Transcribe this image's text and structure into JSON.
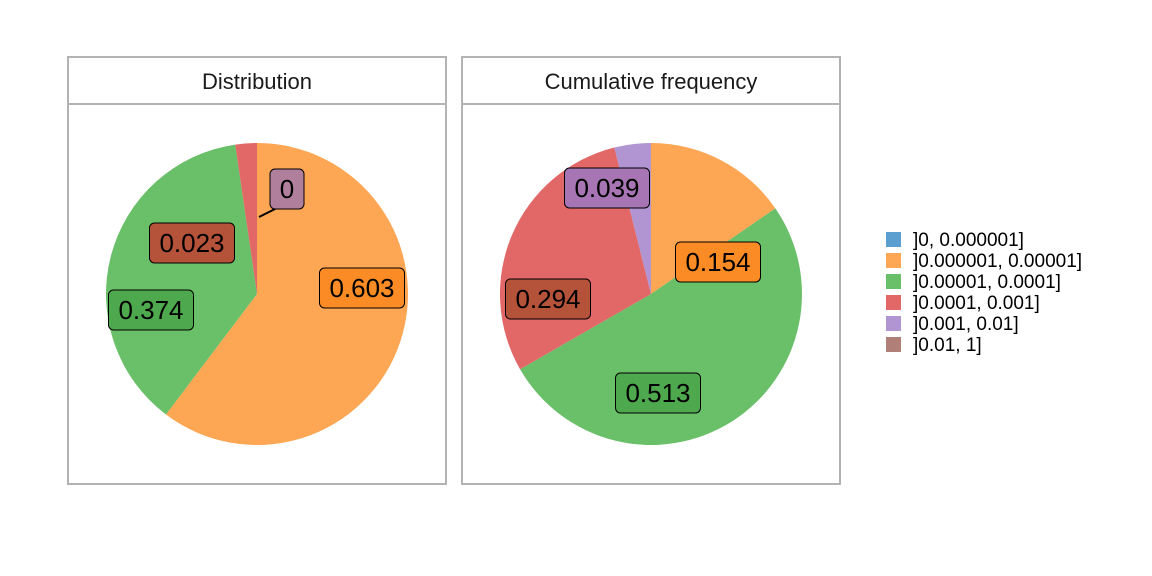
{
  "chart_data": [
    {
      "type": "pie",
      "title": "Distribution",
      "categories": [
        "]0, 0.000001]",
        "]0.000001, 0.00001]",
        "]0.00001, 0.0001]",
        "]0.0001, 0.001]",
        "]0.001, 0.01]",
        "]0.01, 1]"
      ],
      "values": [
        0,
        0.603,
        0.374,
        0.023,
        0,
        0
      ],
      "data_labels": [
        {
          "category": "]0.000001, 0.00001]",
          "text": "0.603"
        },
        {
          "category": "]0.00001, 0.0001]",
          "text": "0.374"
        },
        {
          "category": "]0.0001, 0.001]",
          "text": "0.023"
        },
        {
          "category": "]0.01, 1]",
          "text": "0"
        }
      ]
    },
    {
      "type": "pie",
      "title": "Cumulative frequency",
      "categories": [
        "]0, 0.000001]",
        "]0.000001, 0.00001]",
        "]0.00001, 0.0001]",
        "]0.0001, 0.001]",
        "]0.001, 0.01]",
        "]0.01, 1]"
      ],
      "values": [
        0,
        0.154,
        0.513,
        0.294,
        0.039,
        0
      ],
      "data_labels": [
        {
          "category": "]0.000001, 0.00001]",
          "text": "0.154"
        },
        {
          "category": "]0.00001, 0.0001]",
          "text": "0.513"
        },
        {
          "category": "]0.0001, 0.001]",
          "text": "0.294"
        },
        {
          "category": "]0.001, 0.01]",
          "text": "0.039"
        }
      ]
    }
  ],
  "legend": {
    "placement": "right",
    "items": [
      {
        "label": "]0, 0.000001]",
        "color": "#5b9fd1"
      },
      {
        "label": "]0.000001, 0.00001]",
        "color": "#fda654"
      },
      {
        "label": "]0.00001, 0.0001]",
        "color": "#6abf69"
      },
      {
        "label": "]0.0001, 0.001]",
        "color": "#e26767"
      },
      {
        "label": "]0.001, 0.01]",
        "color": "#b095d2"
      },
      {
        "label": "]0.01, 1]",
        "color": "#b07f77"
      }
    ]
  },
  "label_fill_colors": {
    "]0.000001, 0.00001]": "#fb8b24",
    "]0.00001, 0.0001]": "#4ea84d",
    "]0.0001, 0.001]": "#b5523a",
    "]0.001, 0.01]": "#a775b3",
    "]0.01, 1]": "#b07f9c"
  }
}
